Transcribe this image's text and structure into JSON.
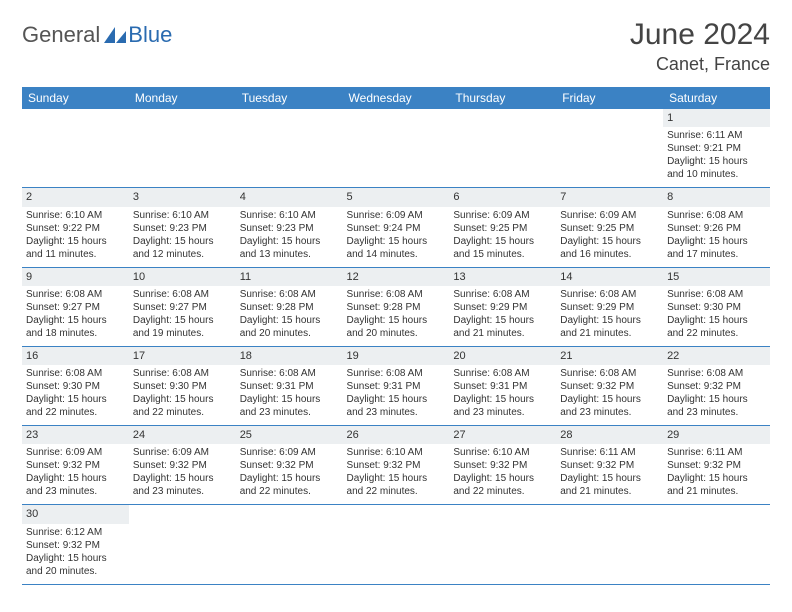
{
  "logo": {
    "word1": "General",
    "word2": "Blue"
  },
  "title": "June 2024",
  "location": "Canet, France",
  "colors": {
    "header_bg": "#3b82c4",
    "header_fg": "#ffffff",
    "row_divider": "#3b82c4",
    "day_strip_bg": "#eceff1",
    "logo_gray": "#555555",
    "logo_blue": "#2a6bb0"
  },
  "day_headers": [
    "Sunday",
    "Monday",
    "Tuesday",
    "Wednesday",
    "Thursday",
    "Friday",
    "Saturday"
  ],
  "weeks": [
    [
      null,
      null,
      null,
      null,
      null,
      null,
      {
        "n": "1",
        "sr": "Sunrise: 6:11 AM",
        "ss": "Sunset: 9:21 PM",
        "d1": "Daylight: 15 hours",
        "d2": "and 10 minutes."
      }
    ],
    [
      {
        "n": "2",
        "sr": "Sunrise: 6:10 AM",
        "ss": "Sunset: 9:22 PM",
        "d1": "Daylight: 15 hours",
        "d2": "and 11 minutes."
      },
      {
        "n": "3",
        "sr": "Sunrise: 6:10 AM",
        "ss": "Sunset: 9:23 PM",
        "d1": "Daylight: 15 hours",
        "d2": "and 12 minutes."
      },
      {
        "n": "4",
        "sr": "Sunrise: 6:10 AM",
        "ss": "Sunset: 9:23 PM",
        "d1": "Daylight: 15 hours",
        "d2": "and 13 minutes."
      },
      {
        "n": "5",
        "sr": "Sunrise: 6:09 AM",
        "ss": "Sunset: 9:24 PM",
        "d1": "Daylight: 15 hours",
        "d2": "and 14 minutes."
      },
      {
        "n": "6",
        "sr": "Sunrise: 6:09 AM",
        "ss": "Sunset: 9:25 PM",
        "d1": "Daylight: 15 hours",
        "d2": "and 15 minutes."
      },
      {
        "n": "7",
        "sr": "Sunrise: 6:09 AM",
        "ss": "Sunset: 9:25 PM",
        "d1": "Daylight: 15 hours",
        "d2": "and 16 minutes."
      },
      {
        "n": "8",
        "sr": "Sunrise: 6:08 AM",
        "ss": "Sunset: 9:26 PM",
        "d1": "Daylight: 15 hours",
        "d2": "and 17 minutes."
      }
    ],
    [
      {
        "n": "9",
        "sr": "Sunrise: 6:08 AM",
        "ss": "Sunset: 9:27 PM",
        "d1": "Daylight: 15 hours",
        "d2": "and 18 minutes."
      },
      {
        "n": "10",
        "sr": "Sunrise: 6:08 AM",
        "ss": "Sunset: 9:27 PM",
        "d1": "Daylight: 15 hours",
        "d2": "and 19 minutes."
      },
      {
        "n": "11",
        "sr": "Sunrise: 6:08 AM",
        "ss": "Sunset: 9:28 PM",
        "d1": "Daylight: 15 hours",
        "d2": "and 20 minutes."
      },
      {
        "n": "12",
        "sr": "Sunrise: 6:08 AM",
        "ss": "Sunset: 9:28 PM",
        "d1": "Daylight: 15 hours",
        "d2": "and 20 minutes."
      },
      {
        "n": "13",
        "sr": "Sunrise: 6:08 AM",
        "ss": "Sunset: 9:29 PM",
        "d1": "Daylight: 15 hours",
        "d2": "and 21 minutes."
      },
      {
        "n": "14",
        "sr": "Sunrise: 6:08 AM",
        "ss": "Sunset: 9:29 PM",
        "d1": "Daylight: 15 hours",
        "d2": "and 21 minutes."
      },
      {
        "n": "15",
        "sr": "Sunrise: 6:08 AM",
        "ss": "Sunset: 9:30 PM",
        "d1": "Daylight: 15 hours",
        "d2": "and 22 minutes."
      }
    ],
    [
      {
        "n": "16",
        "sr": "Sunrise: 6:08 AM",
        "ss": "Sunset: 9:30 PM",
        "d1": "Daylight: 15 hours",
        "d2": "and 22 minutes."
      },
      {
        "n": "17",
        "sr": "Sunrise: 6:08 AM",
        "ss": "Sunset: 9:30 PM",
        "d1": "Daylight: 15 hours",
        "d2": "and 22 minutes."
      },
      {
        "n": "18",
        "sr": "Sunrise: 6:08 AM",
        "ss": "Sunset: 9:31 PM",
        "d1": "Daylight: 15 hours",
        "d2": "and 23 minutes."
      },
      {
        "n": "19",
        "sr": "Sunrise: 6:08 AM",
        "ss": "Sunset: 9:31 PM",
        "d1": "Daylight: 15 hours",
        "d2": "and 23 minutes."
      },
      {
        "n": "20",
        "sr": "Sunrise: 6:08 AM",
        "ss": "Sunset: 9:31 PM",
        "d1": "Daylight: 15 hours",
        "d2": "and 23 minutes."
      },
      {
        "n": "21",
        "sr": "Sunrise: 6:08 AM",
        "ss": "Sunset: 9:32 PM",
        "d1": "Daylight: 15 hours",
        "d2": "and 23 minutes."
      },
      {
        "n": "22",
        "sr": "Sunrise: 6:08 AM",
        "ss": "Sunset: 9:32 PM",
        "d1": "Daylight: 15 hours",
        "d2": "and 23 minutes."
      }
    ],
    [
      {
        "n": "23",
        "sr": "Sunrise: 6:09 AM",
        "ss": "Sunset: 9:32 PM",
        "d1": "Daylight: 15 hours",
        "d2": "and 23 minutes."
      },
      {
        "n": "24",
        "sr": "Sunrise: 6:09 AM",
        "ss": "Sunset: 9:32 PM",
        "d1": "Daylight: 15 hours",
        "d2": "and 23 minutes."
      },
      {
        "n": "25",
        "sr": "Sunrise: 6:09 AM",
        "ss": "Sunset: 9:32 PM",
        "d1": "Daylight: 15 hours",
        "d2": "and 22 minutes."
      },
      {
        "n": "26",
        "sr": "Sunrise: 6:10 AM",
        "ss": "Sunset: 9:32 PM",
        "d1": "Daylight: 15 hours",
        "d2": "and 22 minutes."
      },
      {
        "n": "27",
        "sr": "Sunrise: 6:10 AM",
        "ss": "Sunset: 9:32 PM",
        "d1": "Daylight: 15 hours",
        "d2": "and 22 minutes."
      },
      {
        "n": "28",
        "sr": "Sunrise: 6:11 AM",
        "ss": "Sunset: 9:32 PM",
        "d1": "Daylight: 15 hours",
        "d2": "and 21 minutes."
      },
      {
        "n": "29",
        "sr": "Sunrise: 6:11 AM",
        "ss": "Sunset: 9:32 PM",
        "d1": "Daylight: 15 hours",
        "d2": "and 21 minutes."
      }
    ],
    [
      {
        "n": "30",
        "sr": "Sunrise: 6:12 AM",
        "ss": "Sunset: 9:32 PM",
        "d1": "Daylight: 15 hours",
        "d2": "and 20 minutes."
      },
      null,
      null,
      null,
      null,
      null,
      null
    ]
  ]
}
